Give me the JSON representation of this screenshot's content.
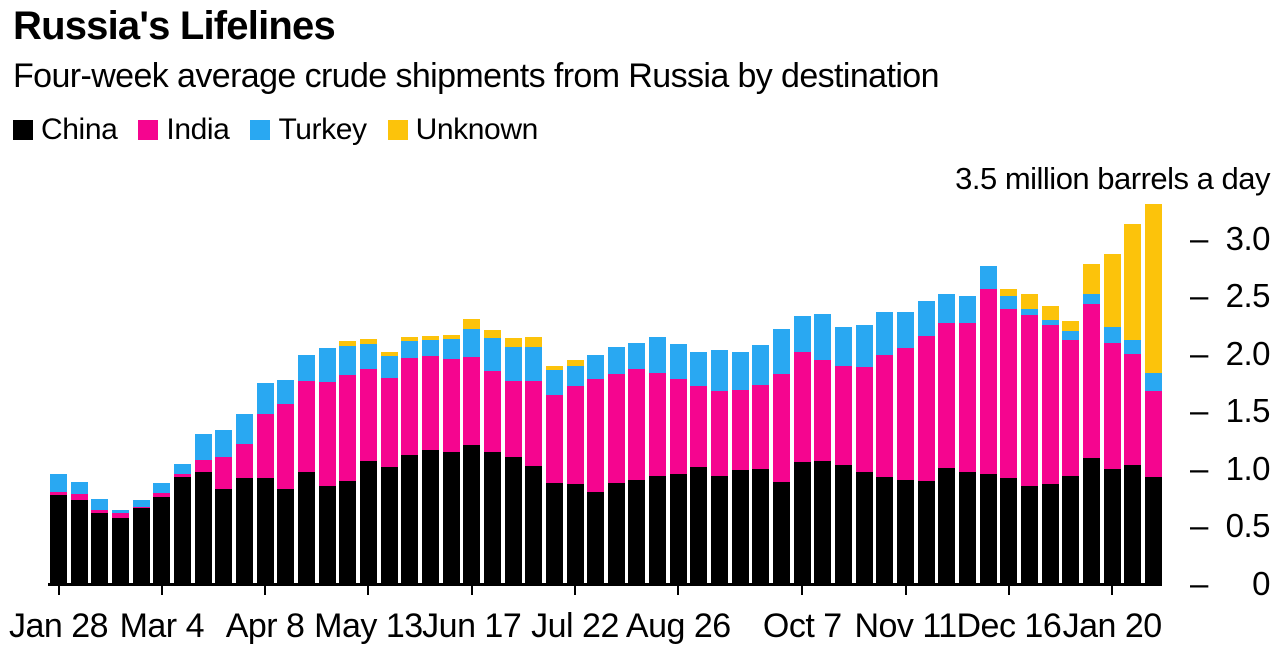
{
  "header": {
    "title": "Russia's Lifelines",
    "subtitle": "Four-week average crude shipments from Russia by destination"
  },
  "legend": [
    {
      "label": "China",
      "color": "#000000"
    },
    {
      "label": "India",
      "color": "#f5058f"
    },
    {
      "label": "Turkey",
      "color": "#29a8f2"
    },
    {
      "label": "Unknown",
      "color": "#fcc30b"
    }
  ],
  "chart_data": {
    "type": "bar",
    "stacked": true,
    "title": "Russia's Lifelines",
    "subtitle": "Four-week average crude shipments from Russia by destination",
    "y_axis_top_label": "3.5 million barrels a day",
    "ylabel": "million barrels a day",
    "ylim": [
      0,
      3.5
    ],
    "grid": false,
    "legend_position": "top-left",
    "y_axis_side": "right",
    "weeks": 54,
    "y_ticks": [
      {
        "value": 0,
        "label": "0"
      },
      {
        "value": 0.5,
        "label": "0.5"
      },
      {
        "value": 1.0,
        "label": "1.0"
      },
      {
        "value": 1.5,
        "label": "1.5"
      },
      {
        "value": 2.0,
        "label": "2.0"
      },
      {
        "value": 2.5,
        "label": "2.5"
      },
      {
        "value": 3.0,
        "label": "3.0"
      }
    ],
    "x_ticks": [
      {
        "index": 0,
        "label": "Jan 28"
      },
      {
        "index": 5,
        "label": "Mar 4"
      },
      {
        "index": 10,
        "label": "Apr 8"
      },
      {
        "index": 15,
        "label": "May 13"
      },
      {
        "index": 20,
        "label": "Jun 17"
      },
      {
        "index": 25,
        "label": "Jul 22"
      },
      {
        "index": 30,
        "label": "Aug 26"
      },
      {
        "index": 36,
        "label": "Oct 7"
      },
      {
        "index": 41,
        "label": "Nov 11"
      },
      {
        "index": 46,
        "label": "Dec 16"
      },
      {
        "index": 51,
        "label": "Jan 20"
      }
    ],
    "series": [
      {
        "name": "China",
        "color": "#000000",
        "values": [
          0.77,
          0.72,
          0.61,
          0.57,
          0.65,
          0.75,
          0.92,
          0.97,
          0.82,
          0.91,
          0.91,
          0.82,
          0.97,
          0.84,
          0.89,
          1.06,
          1.01,
          1.11,
          1.16,
          1.14,
          1.2,
          1.14,
          1.1,
          1.02,
          0.87,
          0.86,
          0.79,
          0.87,
          0.9,
          0.93,
          0.95,
          1.01,
          0.93,
          0.98,
          0.99,
          0.88,
          1.05,
          1.06,
          1.03,
          0.97,
          0.92,
          0.9,
          0.89,
          1.0,
          0.97,
          0.95,
          0.91,
          0.84,
          0.86,
          0.93,
          1.09,
          0.99,
          1.03,
          0.92
        ]
      },
      {
        "name": "India",
        "color": "#f5058f",
        "values": [
          0.02,
          0.05,
          0.03,
          0.04,
          0.01,
          0.03,
          0.03,
          0.1,
          0.28,
          0.3,
          0.56,
          0.74,
          0.79,
          0.91,
          0.92,
          0.8,
          0.77,
          0.85,
          0.81,
          0.81,
          0.77,
          0.7,
          0.66,
          0.74,
          0.77,
          0.85,
          0.98,
          0.95,
          0.96,
          0.9,
          0.82,
          0.7,
          0.74,
          0.7,
          0.73,
          0.94,
          0.96,
          0.88,
          0.86,
          0.91,
          1.06,
          1.14,
          1.26,
          1.26,
          1.29,
          1.61,
          1.47,
          1.49,
          1.38,
          1.18,
          1.34,
          1.1,
          0.96,
          0.75
        ]
      },
      {
        "name": "Turkey",
        "color": "#29a8f2",
        "values": [
          0.16,
          0.11,
          0.09,
          0.03,
          0.06,
          0.09,
          0.09,
          0.23,
          0.23,
          0.26,
          0.27,
          0.21,
          0.22,
          0.29,
          0.25,
          0.22,
          0.19,
          0.14,
          0.14,
          0.17,
          0.24,
          0.29,
          0.29,
          0.29,
          0.21,
          0.18,
          0.21,
          0.23,
          0.23,
          0.31,
          0.31,
          0.3,
          0.36,
          0.33,
          0.35,
          0.39,
          0.31,
          0.4,
          0.34,
          0.36,
          0.38,
          0.32,
          0.3,
          0.25,
          0.24,
          0.2,
          0.12,
          0.05,
          0.05,
          0.08,
          0.08,
          0.14,
          0.12,
          0.16
        ]
      },
      {
        "name": "Unknown",
        "color": "#fcc30b",
        "values": [
          0,
          0,
          0,
          0,
          0,
          0,
          0,
          0,
          0,
          0,
          0,
          0,
          0,
          0,
          0.04,
          0.04,
          0.04,
          0.04,
          0.04,
          0.04,
          0.09,
          0.07,
          0.08,
          0.09,
          0.04,
          0.05,
          0,
          0,
          0,
          0,
          0,
          0,
          0,
          0,
          0,
          0,
          0,
          0,
          0,
          0,
          0,
          0,
          0,
          0,
          0,
          0,
          0.06,
          0.13,
          0.12,
          0.09,
          0.26,
          0.63,
          1.01,
          1.47
        ]
      }
    ]
  }
}
